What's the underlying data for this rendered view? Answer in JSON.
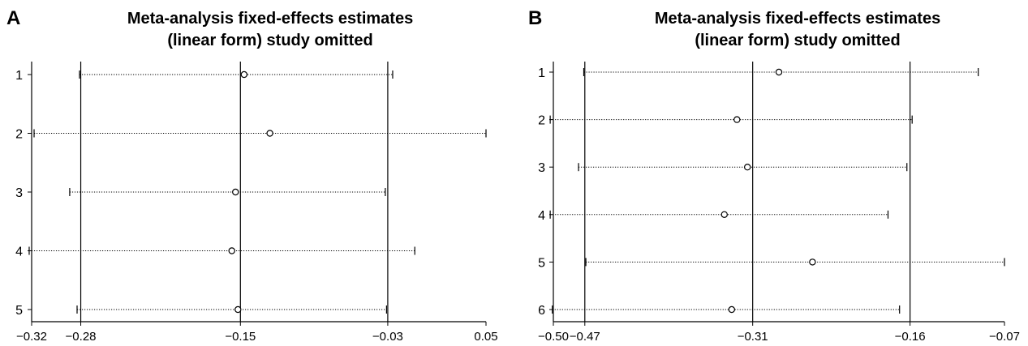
{
  "chart_data": [
    {
      "type": "scatter",
      "panel_label": "A",
      "title": [
        "Meta-analysis fixed-effects estimates",
        "(linear form) study omitted"
      ],
      "xlabel": "",
      "ylabel": "",
      "xlim": [
        -0.32,
        0.05
      ],
      "x_ticks": [
        -0.32,
        -0.28,
        -0.15,
        -0.03,
        0.05
      ],
      "x_tick_labels": [
        "−0.32",
        "−0.28",
        "−0.15",
        "−0.03",
        "0.05"
      ],
      "reference_lines": [
        -0.28,
        -0.15,
        -0.03
      ],
      "studies": [
        {
          "label": "1",
          "estimate": -0.147,
          "lower": -0.281,
          "upper": -0.026
        },
        {
          "label": "2",
          "estimate": -0.126,
          "lower": -0.318,
          "upper": 0.05
        },
        {
          "label": "3",
          "estimate": -0.154,
          "lower": -0.289,
          "upper": -0.032
        },
        {
          "label": "4",
          "estimate": -0.157,
          "lower": -0.322,
          "upper": -0.008
        },
        {
          "label": "5",
          "estimate": -0.152,
          "lower": -0.283,
          "upper": -0.031
        }
      ]
    },
    {
      "type": "scatter",
      "panel_label": "B",
      "title": [
        "Meta-analysis fixed-effects estimates",
        "(linear form) study omitted"
      ],
      "xlabel": "",
      "ylabel": "",
      "xlim": [
        -0.5,
        -0.07
      ],
      "x_ticks": [
        -0.5,
        -0.47,
        -0.31,
        -0.16,
        -0.07
      ],
      "x_tick_labels": [
        "−0.50",
        "−0.47",
        "−0.31",
        "−0.16",
        "−0.07"
      ],
      "reference_lines": [
        -0.47,
        -0.31,
        -0.16
      ],
      "studies": [
        {
          "label": "1",
          "estimate": -0.285,
          "lower": -0.471,
          "upper": -0.095
        },
        {
          "label": "2",
          "estimate": -0.325,
          "lower": -0.503,
          "upper": -0.158
        },
        {
          "label": "3",
          "estimate": -0.315,
          "lower": -0.476,
          "upper": -0.163
        },
        {
          "label": "4",
          "estimate": -0.337,
          "lower": -0.503,
          "upper": -0.181
        },
        {
          "label": "5",
          "estimate": -0.253,
          "lower": -0.469,
          "upper": -0.07
        },
        {
          "label": "6",
          "estimate": -0.33,
          "lower": -0.501,
          "upper": -0.17
        }
      ]
    }
  ]
}
